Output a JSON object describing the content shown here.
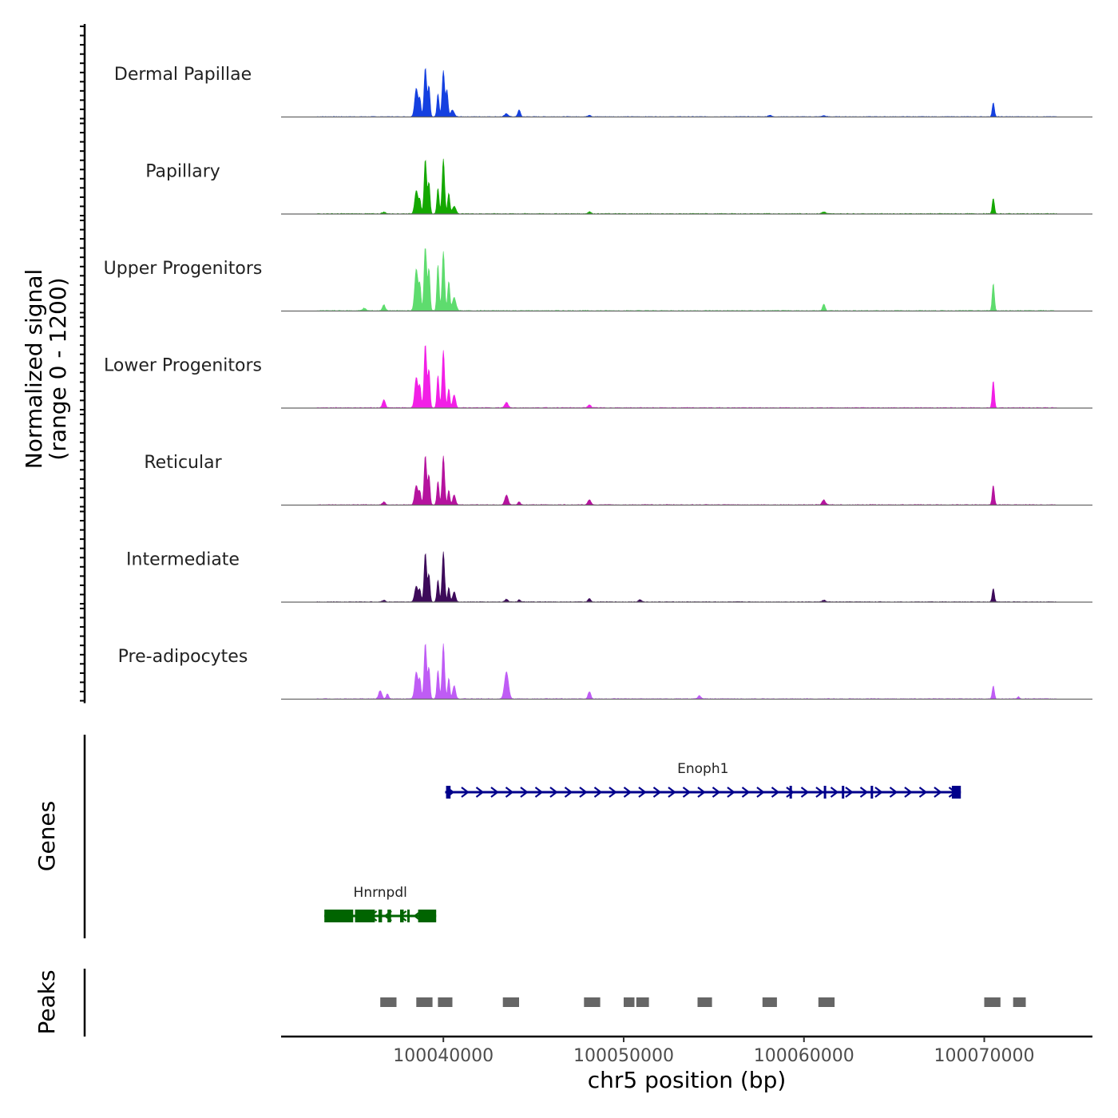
{
  "chart_data": {
    "type": "area",
    "region": {
      "chrom": "chr5",
      "start": 100031000,
      "end": 100076000
    },
    "xlabel": "chr5 position (bp)",
    "x_ticks": [
      100040000,
      100050000,
      100060000,
      100070000
    ],
    "x_tick_labels": [
      "100040000",
      "100050000",
      "100060000",
      "100070000"
    ],
    "signal_ylabel_line1": "Normalized signal",
    "signal_ylabel_line2": "(range 0 - 1200)",
    "signal_range": [
      0,
      1200
    ],
    "tracks": [
      {
        "name": "Dermal Papillae",
        "color": "#1540E0",
        "scale": 0.85,
        "peaks": [
          [
            100038500,
            650,
            90
          ],
          [
            100038700,
            380,
            60
          ],
          [
            100039000,
            1120,
            70
          ],
          [
            100039200,
            700,
            60
          ],
          [
            100039700,
            520,
            60
          ],
          [
            100040000,
            1050,
            70
          ],
          [
            100040200,
            600,
            60
          ],
          [
            100040500,
            150,
            100
          ],
          [
            100043500,
            70,
            100
          ],
          [
            100044200,
            160,
            70
          ],
          [
            100048100,
            40,
            80
          ],
          [
            100058100,
            35,
            100
          ],
          [
            100061100,
            25,
            100
          ],
          [
            100070500,
            320,
            60
          ]
        ]
      },
      {
        "name": "Papillary",
        "color": "#14A800",
        "scale": 1.0,
        "peaks": [
          [
            100038500,
            450,
            90
          ],
          [
            100038700,
            250,
            60
          ],
          [
            100039000,
            1050,
            70
          ],
          [
            100039200,
            600,
            60
          ],
          [
            100039700,
            500,
            60
          ],
          [
            100040000,
            1060,
            70
          ],
          [
            100040300,
            400,
            60
          ],
          [
            100040600,
            140,
            100
          ],
          [
            100036700,
            30,
            100
          ],
          [
            100048100,
            40,
            80
          ],
          [
            100061100,
            35,
            100
          ],
          [
            100070500,
            300,
            60
          ]
        ]
      },
      {
        "name": "Upper Progenitors",
        "color": "#5EDC6E",
        "scale": 1.15,
        "peaks": [
          [
            100036700,
            100,
            80
          ],
          [
            100038500,
            700,
            90
          ],
          [
            100038700,
            420,
            60
          ],
          [
            100039000,
            1120,
            70
          ],
          [
            100039200,
            700,
            60
          ],
          [
            100039700,
            780,
            60
          ],
          [
            100040000,
            1000,
            70
          ],
          [
            100040300,
            500,
            60
          ],
          [
            100040600,
            220,
            100
          ],
          [
            100035600,
            40,
            100
          ],
          [
            100061100,
            110,
            70
          ],
          [
            100070500,
            460,
            60
          ]
        ]
      },
      {
        "name": "Lower Progenitors",
        "color": "#F21FE6",
        "scale": 1.05,
        "peaks": [
          [
            100036700,
            150,
            80
          ],
          [
            100038500,
            560,
            90
          ],
          [
            100038700,
            380,
            60
          ],
          [
            100039000,
            1180,
            70
          ],
          [
            100039200,
            700,
            60
          ],
          [
            100039700,
            600,
            60
          ],
          [
            100040000,
            1050,
            70
          ],
          [
            100040300,
            350,
            60
          ],
          [
            100040600,
            240,
            80
          ],
          [
            100043500,
            100,
            90
          ],
          [
            100048100,
            60,
            80
          ],
          [
            100070500,
            500,
            60
          ]
        ]
      },
      {
        "name": "Reticular",
        "color": "#B5139E",
        "scale": 0.95,
        "peaks": [
          [
            100036700,
            60,
            80
          ],
          [
            100038500,
            400,
            90
          ],
          [
            100038700,
            260,
            60
          ],
          [
            100039000,
            1000,
            70
          ],
          [
            100039200,
            600,
            60
          ],
          [
            100039700,
            480,
            60
          ],
          [
            100040000,
            1000,
            70
          ],
          [
            100040300,
            300,
            60
          ],
          [
            100040600,
            200,
            80
          ],
          [
            100043500,
            200,
            90
          ],
          [
            100044200,
            60,
            70
          ],
          [
            100048100,
            110,
            80
          ],
          [
            100061100,
            100,
            90
          ],
          [
            100070500,
            400,
            60
          ]
        ]
      },
      {
        "name": "Intermediate",
        "color": "#3D0A5A",
        "scale": 0.88,
        "peaks": [
          [
            100036700,
            40,
            80
          ],
          [
            100038500,
            350,
            90
          ],
          [
            100038700,
            250,
            60
          ],
          [
            100039000,
            1080,
            70
          ],
          [
            100039200,
            600,
            60
          ],
          [
            100039700,
            480,
            60
          ],
          [
            100040000,
            1100,
            70
          ],
          [
            100040300,
            320,
            60
          ],
          [
            100040600,
            220,
            80
          ],
          [
            100043500,
            60,
            90
          ],
          [
            100044200,
            50,
            70
          ],
          [
            100048100,
            70,
            80
          ],
          [
            100050900,
            50,
            80
          ],
          [
            100061100,
            40,
            90
          ],
          [
            100070500,
            300,
            60
          ]
        ]
      },
      {
        "name": "Pre-adipocytes",
        "color": "#BF5CF5",
        "scale": 1.0,
        "peaks": [
          [
            100036500,
            160,
            90
          ],
          [
            100036900,
            100,
            70
          ],
          [
            100038500,
            520,
            90
          ],
          [
            100038700,
            360,
            60
          ],
          [
            100039000,
            1080,
            70
          ],
          [
            100039200,
            600,
            60
          ],
          [
            100039700,
            560,
            60
          ],
          [
            100040000,
            1060,
            70
          ],
          [
            100040300,
            400,
            60
          ],
          [
            100040600,
            260,
            80
          ],
          [
            100043500,
            520,
            110
          ],
          [
            100048100,
            140,
            80
          ],
          [
            100054200,
            60,
            90
          ],
          [
            100070500,
            250,
            60
          ],
          [
            100071900,
            40,
            60
          ]
        ]
      }
    ],
    "genes_label": "Genes",
    "genes": [
      {
        "name": "Enoph1",
        "color": "#00008B",
        "start": 100040100,
        "end": 100068700,
        "strand": "+",
        "row": 1,
        "exons": [
          [
            100040150,
            100040400
          ],
          [
            100059200,
            100059300
          ],
          [
            100061100,
            100061200
          ],
          [
            100062100,
            100062200
          ],
          [
            100063700,
            100063800
          ],
          [
            100068200,
            100068700
          ]
        ]
      },
      {
        "name": "Hnrnpdl",
        "color": "#006400",
        "start": 100033400,
        "end": 100039600,
        "strand": "-",
        "row": 2,
        "exons": [
          [
            100033400,
            100035000
          ],
          [
            100035100,
            100036200
          ],
          [
            100036400,
            100036600
          ],
          [
            100036900,
            100037100
          ],
          [
            100037600,
            100037800
          ],
          [
            100038000,
            100038100
          ],
          [
            100038600,
            100039600
          ]
        ]
      }
    ],
    "peaks_label": "Peaks",
    "peak_color": "#666666",
    "peak_regions": [
      [
        100036500,
        100037400
      ],
      [
        100038500,
        100039400
      ],
      [
        100039700,
        100040500
      ],
      [
        100043300,
        100044200
      ],
      [
        100047800,
        100048700
      ],
      [
        100050000,
        100050600
      ],
      [
        100050700,
        100051400
      ],
      [
        100054100,
        100054900
      ],
      [
        100057700,
        100058500
      ],
      [
        100060800,
        100061700
      ],
      [
        100070000,
        100070900
      ],
      [
        100071600,
        100072300
      ]
    ]
  }
}
